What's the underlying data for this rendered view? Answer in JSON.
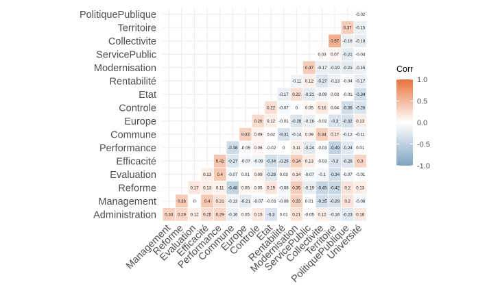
{
  "chart_data": {
    "type": "heatmap",
    "title": "",
    "xlabel": "",
    "ylabel": "",
    "variables": [
      "Administration",
      "Management",
      "Reforme",
      "Evaluation",
      "Efficacité",
      "Performance",
      "Commune",
      "Europe",
      "Controle",
      "Etat",
      "Rentabilité",
      "Modernisation",
      "ServicePublic",
      "Collectivite",
      "Territoire",
      "PolitiquePublique",
      "Université"
    ],
    "x_labels": [
      "Management",
      "Reforme",
      "Evaluation",
      "Efficacité",
      "Performance",
      "Commune",
      "Europe",
      "Controle",
      "Etat",
      "Rentabilité",
      "Modernisation",
      "ServicePublic",
      "Collectivite",
      "Territoire",
      "PolitiquePublique",
      "Université"
    ],
    "y_labels": [
      "Administration",
      "Management",
      "Reforme",
      "Evaluation",
      "Efficacité",
      "Performance",
      "Commune",
      "Europe",
      "Controle",
      "Etat",
      "Rentabilité",
      "Modernisation",
      "ServicePublic",
      "Collectivite",
      "Territoire",
      "PolitiquePublique"
    ],
    "values": {
      "Administration": [
        "0.33",
        "0.28",
        "0.12",
        "0.25",
        "0.29",
        "-0.16",
        "0.05",
        "0.15",
        "-0.3",
        "0.01",
        "0.21",
        "-0.05",
        "0.12",
        "-0.16",
        "-0.23",
        "0.16"
      ],
      "Management": [
        "0.38",
        "0",
        "0.4",
        "0.21",
        "-0.13",
        "-0.21",
        "-0.07",
        "-0.03",
        "-0.08",
        "0.33",
        "0.01",
        "-0.35",
        "-0.29",
        "0.2",
        "-0.08"
      ],
      "Reforme": [
        "0.17",
        "0.13",
        "0.11",
        "-0.48",
        "0.05",
        "0.05",
        "0.19",
        "-0.08",
        "0.35",
        "-0.19",
        "-0.45",
        "-0.42",
        "0.2",
        "0.13"
      ],
      "Evaluation": [
        "0.13",
        "0.4",
        "-0.07",
        "0.01",
        "0.09",
        "-0.26",
        "0.03",
        "0.14",
        "-0.07",
        "-0.1",
        "-0.34",
        "-0.07",
        "-0.01"
      ],
      "Efficacité": [
        "0.41",
        "-0.27",
        "-0.07",
        "-0.09",
        "-0.34",
        "-0.29",
        "0.34",
        "0.13",
        "-0.03",
        "-0.3",
        "-0.26",
        "0.3"
      ],
      "Performance": [
        "-0.38",
        "-0.05",
        "0.06",
        "-0.02",
        "0",
        "0.11",
        "-0.24",
        "-0.03",
        "-0.49",
        "-0.24",
        "0.01"
      ],
      "Commune": [
        "0.33",
        "0.09",
        "0.02",
        "-0.31",
        "-0.14",
        "0.09",
        "0.34",
        "0.17",
        "-0.12",
        "-0.11"
      ],
      "Europe": [
        "0.26",
        "0.12",
        "-0.01",
        "-0.28",
        "-0.16",
        "-0.02",
        "-0.3",
        "-0.32",
        "0.13"
      ],
      "Controle": [
        "0.22",
        "-0.07",
        "0",
        "0.05",
        "0.16",
        "0.04",
        "-0.36",
        "-0.28"
      ],
      "Etat": [
        "-0.17",
        "0.22",
        "-0.21",
        "-0.09",
        "0.03",
        "-0.01",
        "-0.34"
      ],
      "Rentabilité": [
        "-0.11",
        "0.12",
        "-0.27",
        "-0.13",
        "-0.04",
        "-0.17"
      ],
      "Modernisation": [
        "0.37",
        "-0.17",
        "-0.19",
        "-0.21",
        "-0.15"
      ],
      "ServicePublic": [
        "0.03",
        "0.07",
        "-0.21",
        "-0.04"
      ],
      "Collectivite": [
        "0.57",
        "-0.16",
        "-0.19"
      ],
      "Territoire": [
        "0.37",
        "-0.15"
      ],
      "PolitiquePublique": [
        "-0.02"
      ]
    },
    "color_scale": {
      "low": "#7fa3c2",
      "mid": "#ffffff",
      "high": "#e8733d",
      "limits": [
        -1,
        1
      ]
    },
    "legend": {
      "title": "Corr",
      "ticks": [
        "1.0",
        "0.5",
        "0.0",
        "-0.5",
        "-1.0"
      ],
      "placement": "right"
    },
    "grid": true
  }
}
